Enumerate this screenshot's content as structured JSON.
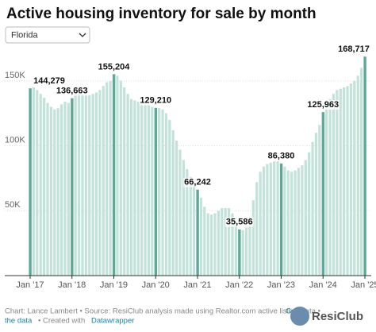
{
  "chart_data": {
    "type": "bar",
    "title": "Active housing inventory for sale by month",
    "dropdown": "Florida",
    "categories": [
      "Jan '17",
      null,
      null,
      null,
      null,
      null,
      null,
      null,
      null,
      null,
      null,
      null,
      "Jan '18",
      null,
      null,
      null,
      null,
      null,
      null,
      null,
      null,
      null,
      null,
      null,
      "Jan '19",
      null,
      null,
      null,
      null,
      null,
      null,
      null,
      null,
      null,
      null,
      null,
      "Jan '20",
      null,
      null,
      null,
      null,
      null,
      null,
      null,
      null,
      null,
      null,
      null,
      "Jan '21",
      null,
      null,
      null,
      null,
      null,
      null,
      null,
      null,
      null,
      null,
      null,
      "Jan '22",
      null,
      null,
      null,
      null,
      null,
      null,
      null,
      null,
      null,
      null,
      null,
      "Jan '23",
      null,
      null,
      null,
      null,
      null,
      null,
      null,
      null,
      null,
      null,
      null,
      "Jan '24",
      null,
      null,
      null,
      null,
      null,
      null,
      null,
      null,
      null,
      null,
      null,
      "Jan '25"
    ],
    "values": [
      144279,
      145000,
      143000,
      140000,
      137000,
      133000,
      130000,
      128000,
      129000,
      132000,
      134000,
      133000,
      136663,
      140000,
      141000,
      140000,
      139000,
      139000,
      140000,
      141000,
      143000,
      146000,
      149000,
      150000,
      155204,
      154000,
      150000,
      145000,
      140000,
      136000,
      135000,
      134000,
      133000,
      133000,
      132000,
      130000,
      129210,
      129000,
      128000,
      125000,
      120000,
      112000,
      104000,
      97000,
      89000,
      82000,
      76000,
      70000,
      66242,
      60000,
      53000,
      48000,
      47000,
      48000,
      50000,
      52000,
      52000,
      52000,
      48000,
      42000,
      35586,
      35000,
      37000,
      45000,
      58000,
      72000,
      80000,
      84000,
      86000,
      87000,
      88000,
      88000,
      86380,
      84000,
      81000,
      80000,
      81000,
      83000,
      85000,
      89000,
      95000,
      103000,
      110000,
      116000,
      125963,
      132000,
      136000,
      140000,
      143000,
      144000,
      145000,
      146000,
      148000,
      150000,
      154000,
      160000,
      168717
    ],
    "value_labels": [
      "144,279",
      null,
      null,
      null,
      null,
      null,
      null,
      null,
      null,
      null,
      null,
      null,
      "136,663",
      null,
      null,
      null,
      null,
      null,
      null,
      null,
      null,
      null,
      null,
      null,
      "155,204",
      null,
      null,
      null,
      null,
      null,
      null,
      null,
      null,
      null,
      null,
      null,
      "129,210",
      null,
      null,
      null,
      null,
      null,
      null,
      null,
      null,
      null,
      null,
      null,
      "66,242",
      null,
      null,
      null,
      null,
      null,
      null,
      null,
      null,
      null,
      null,
      null,
      "35,586",
      null,
      null,
      null,
      null,
      null,
      null,
      null,
      null,
      null,
      null,
      null,
      "86,380",
      null,
      null,
      null,
      null,
      null,
      null,
      null,
      null,
      null,
      null,
      null,
      "125,963",
      null,
      null,
      null,
      null,
      null,
      null,
      null,
      null,
      null,
      null,
      null,
      "168,717"
    ],
    "color": "#c3e2da",
    "highlight_color": "#5fa897",
    "ylim": [
      0,
      175000
    ],
    "yticks": [
      {
        "value": 50000,
        "label": "50K"
      },
      {
        "value": 100000,
        "label": "100K"
      },
      {
        "value": 150000,
        "label": "150K"
      }
    ],
    "grid": true,
    "footer": [
      "Chart: Lance Lambert • Source: ResiClub analysis made using Realtor.com active listing data •",
      "Get",
      "the data",
      "• Created with",
      "Datawrapper"
    ],
    "logo": "ResiClub"
  }
}
